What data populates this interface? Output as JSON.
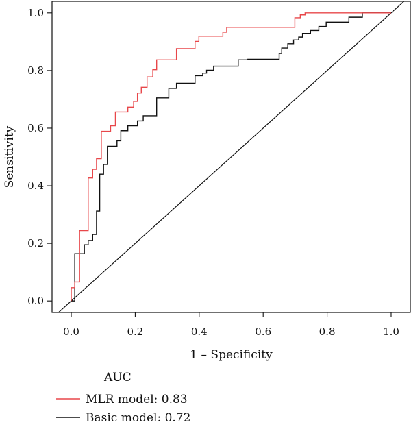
{
  "chart_data": {
    "type": "line",
    "title": "",
    "xlabel": "1 – Specificity",
    "ylabel": "Sensitivity",
    "xlim": [
      -0.06,
      1.06
    ],
    "ylim": [
      -0.04,
      1.04
    ],
    "xticks": [
      0.0,
      0.2,
      0.4,
      0.6,
      0.8,
      1.0
    ],
    "xtick_labels": [
      "0.0",
      "0.2",
      "0.4",
      "0.6",
      "0.8",
      "1.0"
    ],
    "yticks": [
      0.0,
      0.2,
      0.4,
      0.6,
      0.8,
      1.0
    ],
    "ytick_labels": [
      "0.0",
      "0.2",
      "0.4",
      "0.6",
      "0.8",
      "1.0"
    ],
    "grid": false,
    "legend_title": "AUC",
    "legend_position": "bottom",
    "series": [
      {
        "name": "MLR model: 0.83",
        "color": "#e8474a",
        "x": [
          0,
          0,
          0.011,
          0.011,
          0.026,
          0.026,
          0.053,
          0.053,
          0.067,
          0.067,
          0.079,
          0.079,
          0.094,
          0.094,
          0.123,
          0.123,
          0.138,
          0.138,
          0.177,
          0.177,
          0.195,
          0.195,
          0.207,
          0.207,
          0.219,
          0.219,
          0.237,
          0.237,
          0.255,
          0.255,
          0.267,
          0.267,
          0.329,
          0.329,
          0.387,
          0.387,
          0.399,
          0.399,
          0.474,
          0.474,
          0.486,
          0.486,
          0.504,
          0.504,
          0.699,
          0.699,
          0.716,
          0.716,
          0.731,
          0.731,
          1.0
        ],
        "y": [
          0,
          0.046,
          0.046,
          0.066,
          0.066,
          0.244,
          0.244,
          0.427,
          0.427,
          0.457,
          0.457,
          0.494,
          0.494,
          0.589,
          0.589,
          0.608,
          0.608,
          0.656,
          0.656,
          0.673,
          0.673,
          0.693,
          0.693,
          0.722,
          0.722,
          0.742,
          0.742,
          0.778,
          0.778,
          0.803,
          0.803,
          0.837,
          0.837,
          0.876,
          0.876,
          0.901,
          0.901,
          0.919,
          0.919,
          0.933,
          0.933,
          0.95,
          0.95,
          0.95,
          0.95,
          0.983,
          0.983,
          0.993,
          0.993,
          1.0,
          1.0
        ]
      },
      {
        "name": "Basic model: 0.72",
        "color": "#111111",
        "x": [
          0,
          0.011,
          0.011,
          0.041,
          0.041,
          0.053,
          0.053,
          0.067,
          0.067,
          0.079,
          0.079,
          0.089,
          0.089,
          0.101,
          0.101,
          0.113,
          0.113,
          0.143,
          0.143,
          0.155,
          0.155,
          0.177,
          0.177,
          0.207,
          0.207,
          0.225,
          0.225,
          0.267,
          0.267,
          0.305,
          0.305,
          0.329,
          0.329,
          0.387,
          0.387,
          0.411,
          0.411,
          0.423,
          0.423,
          0.445,
          0.445,
          0.522,
          0.522,
          0.552,
          0.552,
          0.65,
          0.65,
          0.658,
          0.658,
          0.677,
          0.677,
          0.695,
          0.695,
          0.711,
          0.711,
          0.723,
          0.723,
          0.748,
          0.748,
          0.774,
          0.774,
          0.797,
          0.797,
          0.868,
          0.868,
          0.91,
          0.91,
          1.0
        ],
        "y": [
          0,
          0,
          0.164,
          0.164,
          0.195,
          0.195,
          0.21,
          0.21,
          0.231,
          0.231,
          0.312,
          0.312,
          0.44,
          0.44,
          0.474,
          0.474,
          0.537,
          0.537,
          0.556,
          0.556,
          0.591,
          0.591,
          0.608,
          0.608,
          0.625,
          0.625,
          0.643,
          0.643,
          0.705,
          0.705,
          0.738,
          0.738,
          0.756,
          0.756,
          0.782,
          0.782,
          0.791,
          0.791,
          0.801,
          0.801,
          0.815,
          0.815,
          0.837,
          0.837,
          0.839,
          0.839,
          0.859,
          0.859,
          0.878,
          0.878,
          0.893,
          0.893,
          0.906,
          0.906,
          0.916,
          0.916,
          0.929,
          0.929,
          0.939,
          0.939,
          0.953,
          0.953,
          0.968,
          0.968,
          0.985,
          0.985,
          1.0,
          1.0
        ]
      }
    ],
    "reference_line": {
      "x": [
        -0.06,
        1.06
      ],
      "y": [
        -0.06,
        1.06
      ],
      "color": "#111111"
    }
  }
}
